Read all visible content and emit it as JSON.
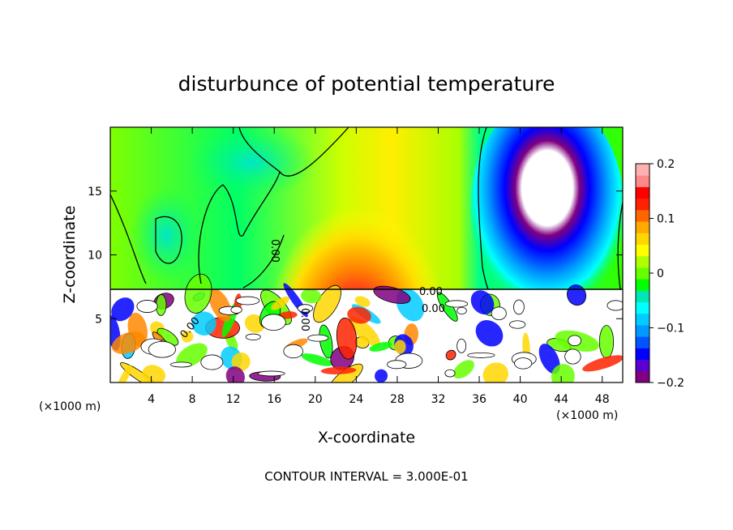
{
  "chart_data": {
    "type": "heatmap",
    "title": "disturbunce of potential temperature",
    "xlabel": "X-coordinate",
    "ylabel": "Z-coordinate",
    "x_unit_left": "(×1000 m)",
    "x_unit_right": "(×1000 m)",
    "xlim": [
      0,
      50
    ],
    "ylim": [
      0,
      20
    ],
    "x_ticks": [
      "4",
      "8",
      "12",
      "16",
      "20",
      "24",
      "28",
      "32",
      "36",
      "40",
      "44",
      "48"
    ],
    "y_ticks": [
      "5",
      "10",
      "15"
    ],
    "footer": "CONTOUR INTERVAL = 3.000E-01",
    "colorbar": {
      "range": [
        -0.2,
        0.2
      ],
      "tick_labels": [
        "0.2",
        "0.1",
        "0",
        "−0.1",
        "−0.2"
      ],
      "colors": [
        "#800080",
        "#5a00d0",
        "#0000ff",
        "#0055ff",
        "#0099ff",
        "#00ccff",
        "#00ffff",
        "#00e6b4",
        "#00ff00",
        "#66ff00",
        "#b0ff00",
        "#ffff00",
        "#ffd700",
        "#ffaa00",
        "#ff6600",
        "#ff2200",
        "#ff0000",
        "#ff8888",
        "#ffb0b0"
      ]
    },
    "inline_labels": [
      "0.00",
      "0.00",
      "0.00",
      "0.00",
      "0.00"
    ],
    "grid": false
  }
}
